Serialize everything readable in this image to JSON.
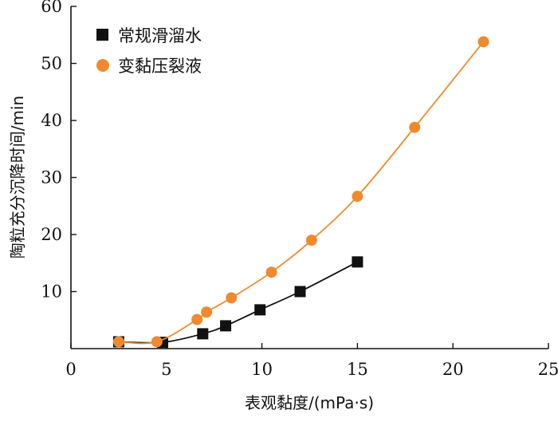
{
  "chart_data": {
    "type": "line",
    "title": "",
    "xlabel": "表观黏度/(mPa·s)",
    "ylabel": "陶粒充分沉降时间/min",
    "xlim": [
      0,
      25
    ],
    "ylim": [
      0,
      60
    ],
    "x_ticks": [
      "0",
      "5",
      "10",
      "15",
      "20",
      "25"
    ],
    "y_ticks": [
      "10",
      "20",
      "30",
      "40",
      "50",
      "60"
    ],
    "grid": false,
    "legend_position": "top-left",
    "series": [
      {
        "name": "常规滑溜水",
        "marker": "square",
        "color": "#111111",
        "points": [
          {
            "x": 2.5,
            "y": 1.2
          },
          {
            "x": 4.8,
            "y": 1.1
          },
          {
            "x": 6.9,
            "y": 2.6
          },
          {
            "x": 8.1,
            "y": 4.0
          },
          {
            "x": 9.9,
            "y": 6.8
          },
          {
            "x": 12.0,
            "y": 10.0
          },
          {
            "x": 15.0,
            "y": 15.2
          }
        ]
      },
      {
        "name": "变黏压裂液",
        "marker": "circle",
        "color": "#f08a2e",
        "points": [
          {
            "x": 2.5,
            "y": 1.2
          },
          {
            "x": 4.5,
            "y": 1.2
          },
          {
            "x": 6.6,
            "y": 5.1
          },
          {
            "x": 7.1,
            "y": 6.4
          },
          {
            "x": 8.4,
            "y": 8.9
          },
          {
            "x": 10.5,
            "y": 13.4
          },
          {
            "x": 12.6,
            "y": 19.0
          },
          {
            "x": 15.0,
            "y": 26.7
          },
          {
            "x": 18.0,
            "y": 38.8
          },
          {
            "x": 21.6,
            "y": 53.8
          }
        ]
      }
    ]
  }
}
